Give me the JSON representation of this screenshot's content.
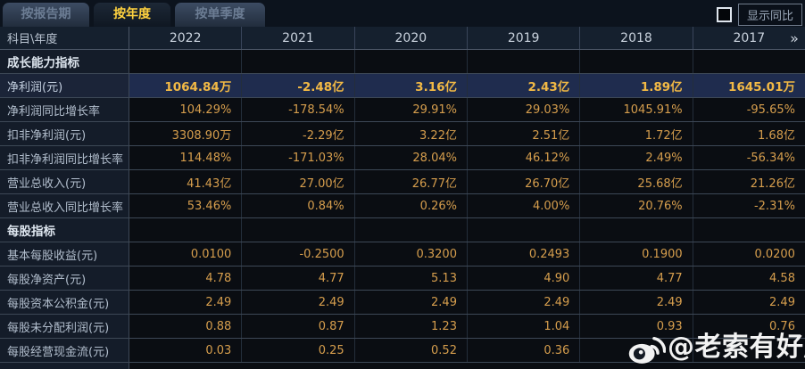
{
  "tabs": [
    {
      "label": "按报告期",
      "active": false
    },
    {
      "label": "按年度",
      "active": true
    },
    {
      "label": "按单季度",
      "active": false
    }
  ],
  "controls": {
    "checkbox_checked": false,
    "show_yoy_label": "显示同比"
  },
  "table": {
    "corner_header": "科目\\年度",
    "years": [
      "2022",
      "2021",
      "2020",
      "2019",
      "2018",
      "2017"
    ],
    "more_icon": "»",
    "rows": [
      {
        "type": "section",
        "label": "成长能力指标"
      },
      {
        "type": "data",
        "highlight": true,
        "label": "净利润(元)",
        "values": [
          "1064.84万",
          "-2.48亿",
          "3.16亿",
          "2.43亿",
          "1.89亿",
          "1645.01万"
        ]
      },
      {
        "type": "data",
        "highlight": false,
        "label": "净利润同比增长率",
        "values": [
          "104.29%",
          "-178.54%",
          "29.91%",
          "29.03%",
          "1045.91%",
          "-95.65%"
        ]
      },
      {
        "type": "data",
        "highlight": false,
        "label": "扣非净利润(元)",
        "values": [
          "3308.90万",
          "-2.29亿",
          "3.22亿",
          "2.51亿",
          "1.72亿",
          "1.68亿"
        ]
      },
      {
        "type": "data",
        "highlight": false,
        "label": "扣非净利润同比增长率",
        "values": [
          "114.48%",
          "-171.03%",
          "28.04%",
          "46.12%",
          "2.49%",
          "-56.34%"
        ]
      },
      {
        "type": "data",
        "highlight": false,
        "label": "营业总收入(元)",
        "values": [
          "41.43亿",
          "27.00亿",
          "26.77亿",
          "26.70亿",
          "25.68亿",
          "21.26亿"
        ]
      },
      {
        "type": "data",
        "highlight": false,
        "label": "营业总收入同比增长率",
        "values": [
          "53.46%",
          "0.84%",
          "0.26%",
          "4.00%",
          "20.76%",
          "-2.31%"
        ]
      },
      {
        "type": "section",
        "label": "每股指标"
      },
      {
        "type": "data",
        "highlight": false,
        "label": "基本每股收益(元)",
        "values": [
          "0.0100",
          "-0.2500",
          "0.3200",
          "0.2493",
          "0.1900",
          "0.0200"
        ]
      },
      {
        "type": "data",
        "highlight": false,
        "label": "每股净资产(元)",
        "values": [
          "4.78",
          "4.77",
          "5.13",
          "4.90",
          "4.77",
          "4.58"
        ]
      },
      {
        "type": "data",
        "highlight": false,
        "label": "每股资本公积金(元)",
        "values": [
          "2.49",
          "2.49",
          "2.49",
          "2.49",
          "2.49",
          "2.49"
        ]
      },
      {
        "type": "data",
        "highlight": false,
        "label": "每股未分配利润(元)",
        "values": [
          "0.88",
          "0.87",
          "1.23",
          "1.04",
          "0.93",
          "0.76"
        ]
      },
      {
        "type": "data",
        "highlight": false,
        "label": "每股经营现金流(元)",
        "values": [
          "0.03",
          "0.25",
          "0.52",
          "0.36",
          "",
          ""
        ]
      }
    ]
  },
  "watermark": {
    "icon": "weibo-icon",
    "text": "@老索有好股"
  },
  "colors": {
    "value_gold": "#d69e4d",
    "highlight_gold": "#f2b945",
    "tab_active_text": "#ffd23f",
    "highlight_row_bg": "#1f2c4e",
    "label_col_bg": "#141c29",
    "cell_bg": "#0a0d12",
    "header_bg": "#15202e"
  }
}
